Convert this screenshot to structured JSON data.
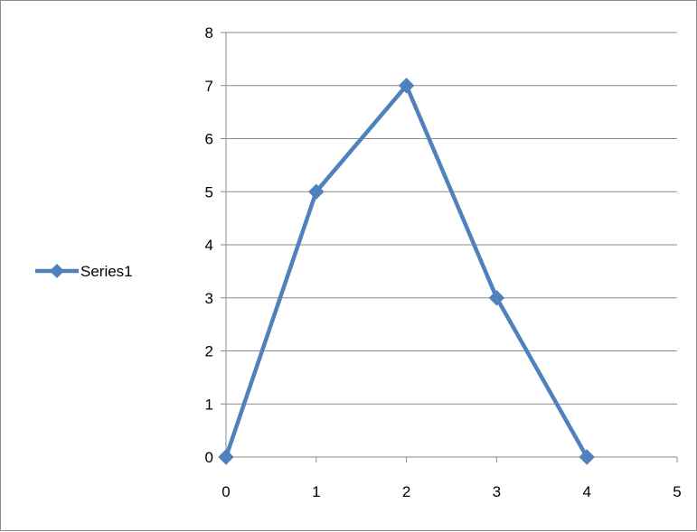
{
  "chart_data": {
    "type": "scatter",
    "title": "",
    "xlabel": "",
    "ylabel": "",
    "xlim": [
      0,
      5
    ],
    "ylim": [
      0,
      8
    ],
    "x_ticks": [
      "0",
      "1",
      "2",
      "3",
      "4",
      "5"
    ],
    "y_ticks": [
      "0",
      "1",
      "2",
      "3",
      "4",
      "5",
      "6",
      "7",
      "8"
    ],
    "grid": "horizontal",
    "legend_position": "left",
    "marker": "diamond",
    "lines": "straight",
    "series": [
      {
        "name": "Series1",
        "color": "#4f81bd",
        "x": [
          0,
          1,
          2,
          3,
          4
        ],
        "y": [
          0,
          5,
          7,
          3,
          0
        ]
      }
    ]
  }
}
